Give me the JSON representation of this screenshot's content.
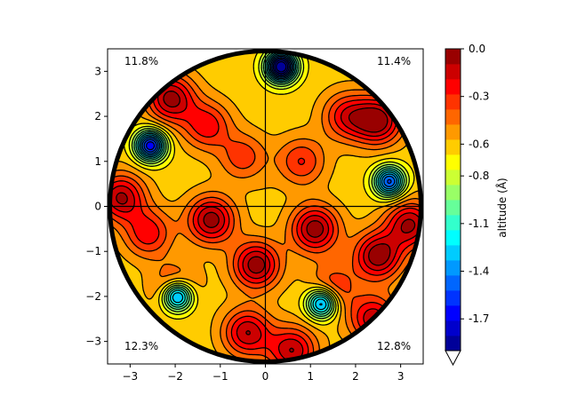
{
  "chart_data": {
    "type": "contour",
    "xlim": [
      -3.5,
      3.5
    ],
    "ylim": [
      -3.5,
      3.5
    ],
    "x_ticks": [
      -3,
      -2,
      -1,
      0,
      1,
      2,
      3
    ],
    "y_ticks": [
      -3,
      -2,
      -1,
      0,
      1,
      2,
      3
    ],
    "x_tick_labels": [
      "−3",
      "−2",
      "−1",
      "0",
      "1",
      "2",
      "3"
    ],
    "y_tick_labels": [
      "−3",
      "−2",
      "−1",
      "0",
      "1",
      "2",
      "3"
    ],
    "boundary_circle_radius": 3.45,
    "crosshair": true,
    "quadrant_labels": {
      "top_left": "11.8%",
      "top_right": "11.4%",
      "bottom_left": "12.3%",
      "bottom_right": "12.8%"
    },
    "colorbar": {
      "label": "altitude (Å)",
      "colormap": "jet",
      "vmin": -1.9,
      "vmax": 0.0,
      "levels": 20,
      "ticks": [
        0.0,
        -0.3,
        -0.6,
        -0.8,
        -1.1,
        -1.4,
        -1.7
      ],
      "tick_labels": [
        "0.0",
        "-0.3",
        "-0.6",
        "-0.8",
        "-1.1",
        "-1.4",
        "-1.7"
      ],
      "extend": "min"
    },
    "peaks": [
      {
        "x": -2.1,
        "y": 2.4,
        "z": -0.05
      },
      {
        "x": -1.3,
        "y": 1.8,
        "z": -0.22
      },
      {
        "x": -0.5,
        "y": 1.1,
        "z": -0.32
      },
      {
        "x": 0.8,
        "y": 1.0,
        "z": -0.28
      },
      {
        "x": 1.8,
        "y": 2.0,
        "z": -0.22
      },
      {
        "x": 2.5,
        "y": 1.9,
        "z": -0.03
      },
      {
        "x": -3.2,
        "y": 0.2,
        "z": -0.08
      },
      {
        "x": -2.6,
        "y": -0.6,
        "z": -0.22
      },
      {
        "x": -1.2,
        "y": -0.3,
        "z": -0.04
      },
      {
        "x": 1.1,
        "y": -0.5,
        "z": -0.03
      },
      {
        "x": 2.5,
        "y": -1.1,
        "z": -0.02
      },
      {
        "x": 3.2,
        "y": -0.4,
        "z": -0.08
      },
      {
        "x": -0.2,
        "y": -1.3,
        "z": -0.03
      },
      {
        "x": -2.0,
        "y": -1.8,
        "z": -0.3
      },
      {
        "x": 1.5,
        "y": -1.8,
        "z": -0.3
      },
      {
        "x": -0.4,
        "y": -2.8,
        "z": -0.1
      },
      {
        "x": 0.6,
        "y": -3.2,
        "z": -0.1
      },
      {
        "x": 2.4,
        "y": -2.5,
        "z": -0.12
      }
    ],
    "valleys": [
      {
        "x": 0.35,
        "y": 3.1,
        "z": -1.95
      },
      {
        "x": -2.55,
        "y": 1.35,
        "z": -1.7
      },
      {
        "x": 2.75,
        "y": 0.55,
        "z": -1.55
      },
      {
        "x": -1.95,
        "y": -2.0,
        "z": -1.6
      },
      {
        "x": 1.25,
        "y": -2.15,
        "z": -1.5
      },
      {
        "x": 0.0,
        "y": 0.3,
        "z": -0.6
      }
    ]
  }
}
